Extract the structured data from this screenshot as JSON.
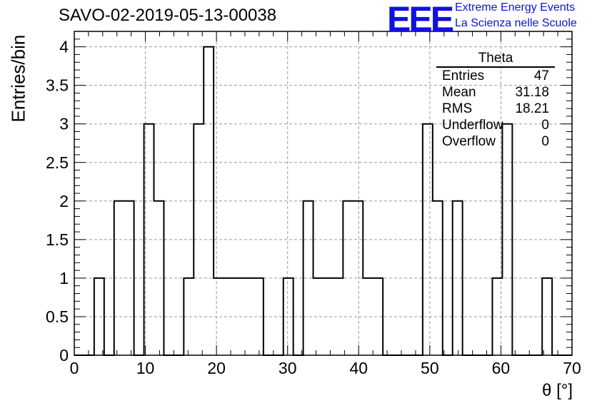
{
  "header": {
    "title": "SAVO-02-2019-05-13-00038",
    "logo_text": "EEE",
    "logo_line1": "Extreme Energy Events",
    "logo_line2": "La Scienza nelle Scuole"
  },
  "stats_box": {
    "title": "Theta",
    "rows": [
      {
        "label": "Entries",
        "value": "47"
      },
      {
        "label": "Mean",
        "value": "31.18"
      },
      {
        "label": "RMS",
        "value": "18.21"
      },
      {
        "label": "Underflow",
        "value": "0"
      },
      {
        "label": "Overflow",
        "value": "0"
      }
    ]
  },
  "chart_data": {
    "type": "bar",
    "xlabel": "θ [°]",
    "ylabel": "Entries/bin",
    "xlim": [
      0,
      70
    ],
    "ylim": [
      0,
      4.2
    ],
    "bin_width": 1.4,
    "bin_edges_start": 0,
    "counts": [
      0,
      0,
      1,
      0,
      2,
      2,
      0,
      3,
      2,
      0,
      0,
      1,
      3,
      4,
      1,
      1,
      1,
      1,
      1,
      0,
      0,
      1,
      0,
      2,
      1,
      1,
      1,
      2,
      2,
      1,
      1,
      0,
      0,
      0,
      0,
      3,
      2,
      0,
      2,
      0,
      0,
      0,
      1,
      3,
      0,
      0,
      0,
      1,
      0,
      0
    ],
    "x_ticks": [
      "0",
      "10",
      "20",
      "30",
      "40",
      "50",
      "60",
      "70"
    ],
    "y_ticks": [
      "0",
      "0.5",
      "1",
      "1.5",
      "2",
      "2.5",
      "3",
      "3.5",
      "4"
    ],
    "grid": true,
    "line_color": "#000000"
  }
}
